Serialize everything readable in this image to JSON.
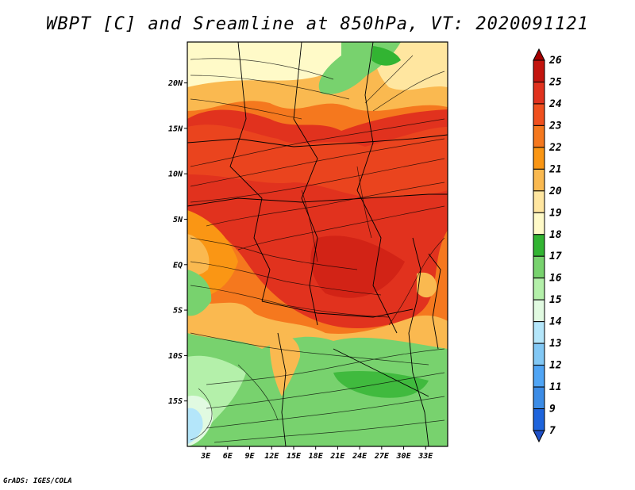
{
  "title": "WBPT [C] and Sreamline at 850hPa, VT: 2020091121",
  "credit": "GrADS: IGES/COLA",
  "map": {
    "lat_range": [
      -20,
      24.5
    ],
    "lon_range": [
      0.5,
      36
    ],
    "lat_ticks": [
      {
        "value": 20,
        "label": "20N"
      },
      {
        "value": 15,
        "label": "15N"
      },
      {
        "value": 10,
        "label": "10N"
      },
      {
        "value": 5,
        "label": "5N"
      },
      {
        "value": 0,
        "label": "EQ"
      },
      {
        "value": -5,
        "label": "5S"
      },
      {
        "value": -10,
        "label": "10S"
      },
      {
        "value": -15,
        "label": "15S"
      }
    ],
    "lon_ticks": [
      {
        "value": 3,
        "label": "3E"
      },
      {
        "value": 6,
        "label": "6E"
      },
      {
        "value": 9,
        "label": "9E"
      },
      {
        "value": 12,
        "label": "12E"
      },
      {
        "value": 15,
        "label": "15E"
      },
      {
        "value": 18,
        "label": "18E"
      },
      {
        "value": 21,
        "label": "21E"
      },
      {
        "value": 24,
        "label": "24E"
      },
      {
        "value": 27,
        "label": "27E"
      },
      {
        "value": 30,
        "label": "30E"
      },
      {
        "value": 33,
        "label": "33E"
      }
    ]
  },
  "colorbar": {
    "levels": [
      {
        "label": "26",
        "color": "#a50000"
      },
      {
        "label": "25",
        "color": "#c3140e"
      },
      {
        "label": "24",
        "color": "#e1321e"
      },
      {
        "label": "23",
        "color": "#f0501e"
      },
      {
        "label": "22",
        "color": "#f5781e"
      },
      {
        "label": "21",
        "color": "#fa9614"
      },
      {
        "label": "20",
        "color": "#fab950"
      },
      {
        "label": "19",
        "color": "#ffe6a0"
      },
      {
        "label": "18",
        "color": "#fffac8"
      },
      {
        "label": "17",
        "color": "#32b432"
      },
      {
        "label": "16",
        "color": "#78d26e"
      },
      {
        "label": "15",
        "color": "#b4f0aa"
      },
      {
        "label": "14",
        "color": "#e1fae1"
      },
      {
        "label": "13",
        "color": "#b4e6fa"
      },
      {
        "label": "12",
        "color": "#82c8f5"
      },
      {
        "label": "11",
        "color": "#50a5f5"
      },
      {
        "label": "9",
        "color": "#3c8ce6"
      },
      {
        "label": "7",
        "color": "#1e64dc"
      }
    ],
    "bottom_color": "#1e50c8"
  }
}
